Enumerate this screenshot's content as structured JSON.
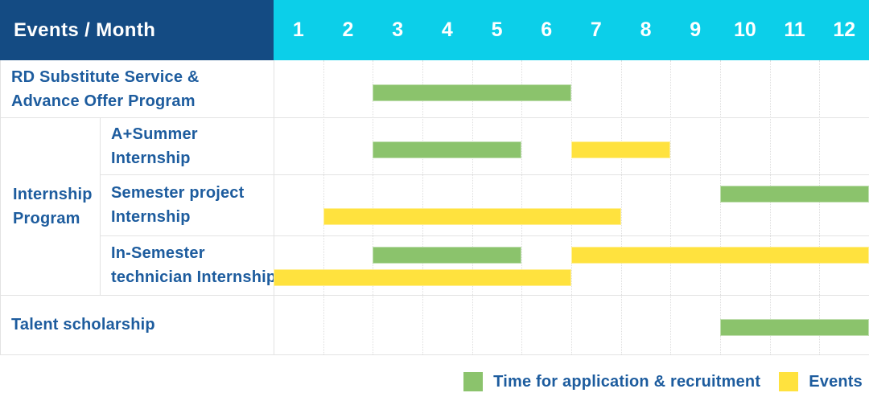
{
  "header": {
    "title": "Events / Month"
  },
  "chart_data": {
    "type": "gantt",
    "x_axis": {
      "unit": "month",
      "ticks": [
        "1",
        "2",
        "3",
        "4",
        "5",
        "6",
        "7",
        "8",
        "9",
        "10",
        "11",
        "12"
      ],
      "range": [
        1,
        12
      ]
    },
    "colors": {
      "header_bg": "#144B83",
      "months_bg": "#0CCFE9",
      "recruitment": "#8BC36C",
      "events": "#FFE23E",
      "label_text": "#1D5C9E",
      "header_text": "#FFFFFF",
      "grid_line": "#E3E3E3"
    },
    "legend": [
      {
        "key": "recruitment",
        "label": "Time for application & recruitment",
        "color": "#8BC36C"
      },
      {
        "key": "events",
        "label": "Events",
        "color": "#FFE23E"
      }
    ],
    "groups": [
      {
        "id": "internship-program",
        "label": "Internship Program",
        "label_lines": [
          "Internship",
          "Program"
        ],
        "from_row": 1,
        "to_row": 3
      }
    ],
    "rows": [
      {
        "id": "rd-substitute-advance-offer",
        "group": null,
        "label": "RD Substitute Service & Advance Offer Program",
        "label_lines": [
          "RD Substitute Service &",
          "Advance Offer Program"
        ],
        "bars": [
          {
            "series": "recruitment",
            "start_month": 3,
            "end_month": 6,
            "lane": "middle"
          }
        ]
      },
      {
        "id": "a-plus-summer-internship",
        "group": "internship-program",
        "label": "A+Summer Internship",
        "label_lines": [
          "A+Summer",
          "Internship"
        ],
        "bars": [
          {
            "series": "recruitment",
            "start_month": 3,
            "end_month": 5,
            "lane": "middle"
          },
          {
            "series": "events",
            "start_month": 7,
            "end_month": 8,
            "lane": "middle"
          }
        ]
      },
      {
        "id": "semester-project-internship",
        "group": "internship-program",
        "label": "Semester project Internship",
        "label_lines": [
          "Semester project",
          "Internship"
        ],
        "bars": [
          {
            "series": "recruitment",
            "start_month": 10,
            "end_month": 12,
            "lane": "upper"
          },
          {
            "series": "events",
            "start_month": 2,
            "end_month": 7,
            "lane": "lower"
          }
        ]
      },
      {
        "id": "in-semester-technician-internship",
        "group": "internship-program",
        "label": "In-Semester technician Internship",
        "label_lines": [
          "In-Semester",
          "technician Internship"
        ],
        "bars": [
          {
            "series": "recruitment",
            "start_month": 3,
            "end_month": 5,
            "lane": "upper"
          },
          {
            "series": "events",
            "start_month": 7,
            "end_month": 12,
            "lane": "upper"
          },
          {
            "series": "events",
            "start_month": 1,
            "end_month": 6,
            "lane": "lower"
          }
        ]
      },
      {
        "id": "talent-scholarship",
        "group": null,
        "label": "Talent scholarship",
        "label_lines": [
          "Talent scholarship"
        ],
        "bars": [
          {
            "series": "recruitment",
            "start_month": 10,
            "end_month": 12,
            "lane": "middle"
          }
        ]
      }
    ]
  }
}
